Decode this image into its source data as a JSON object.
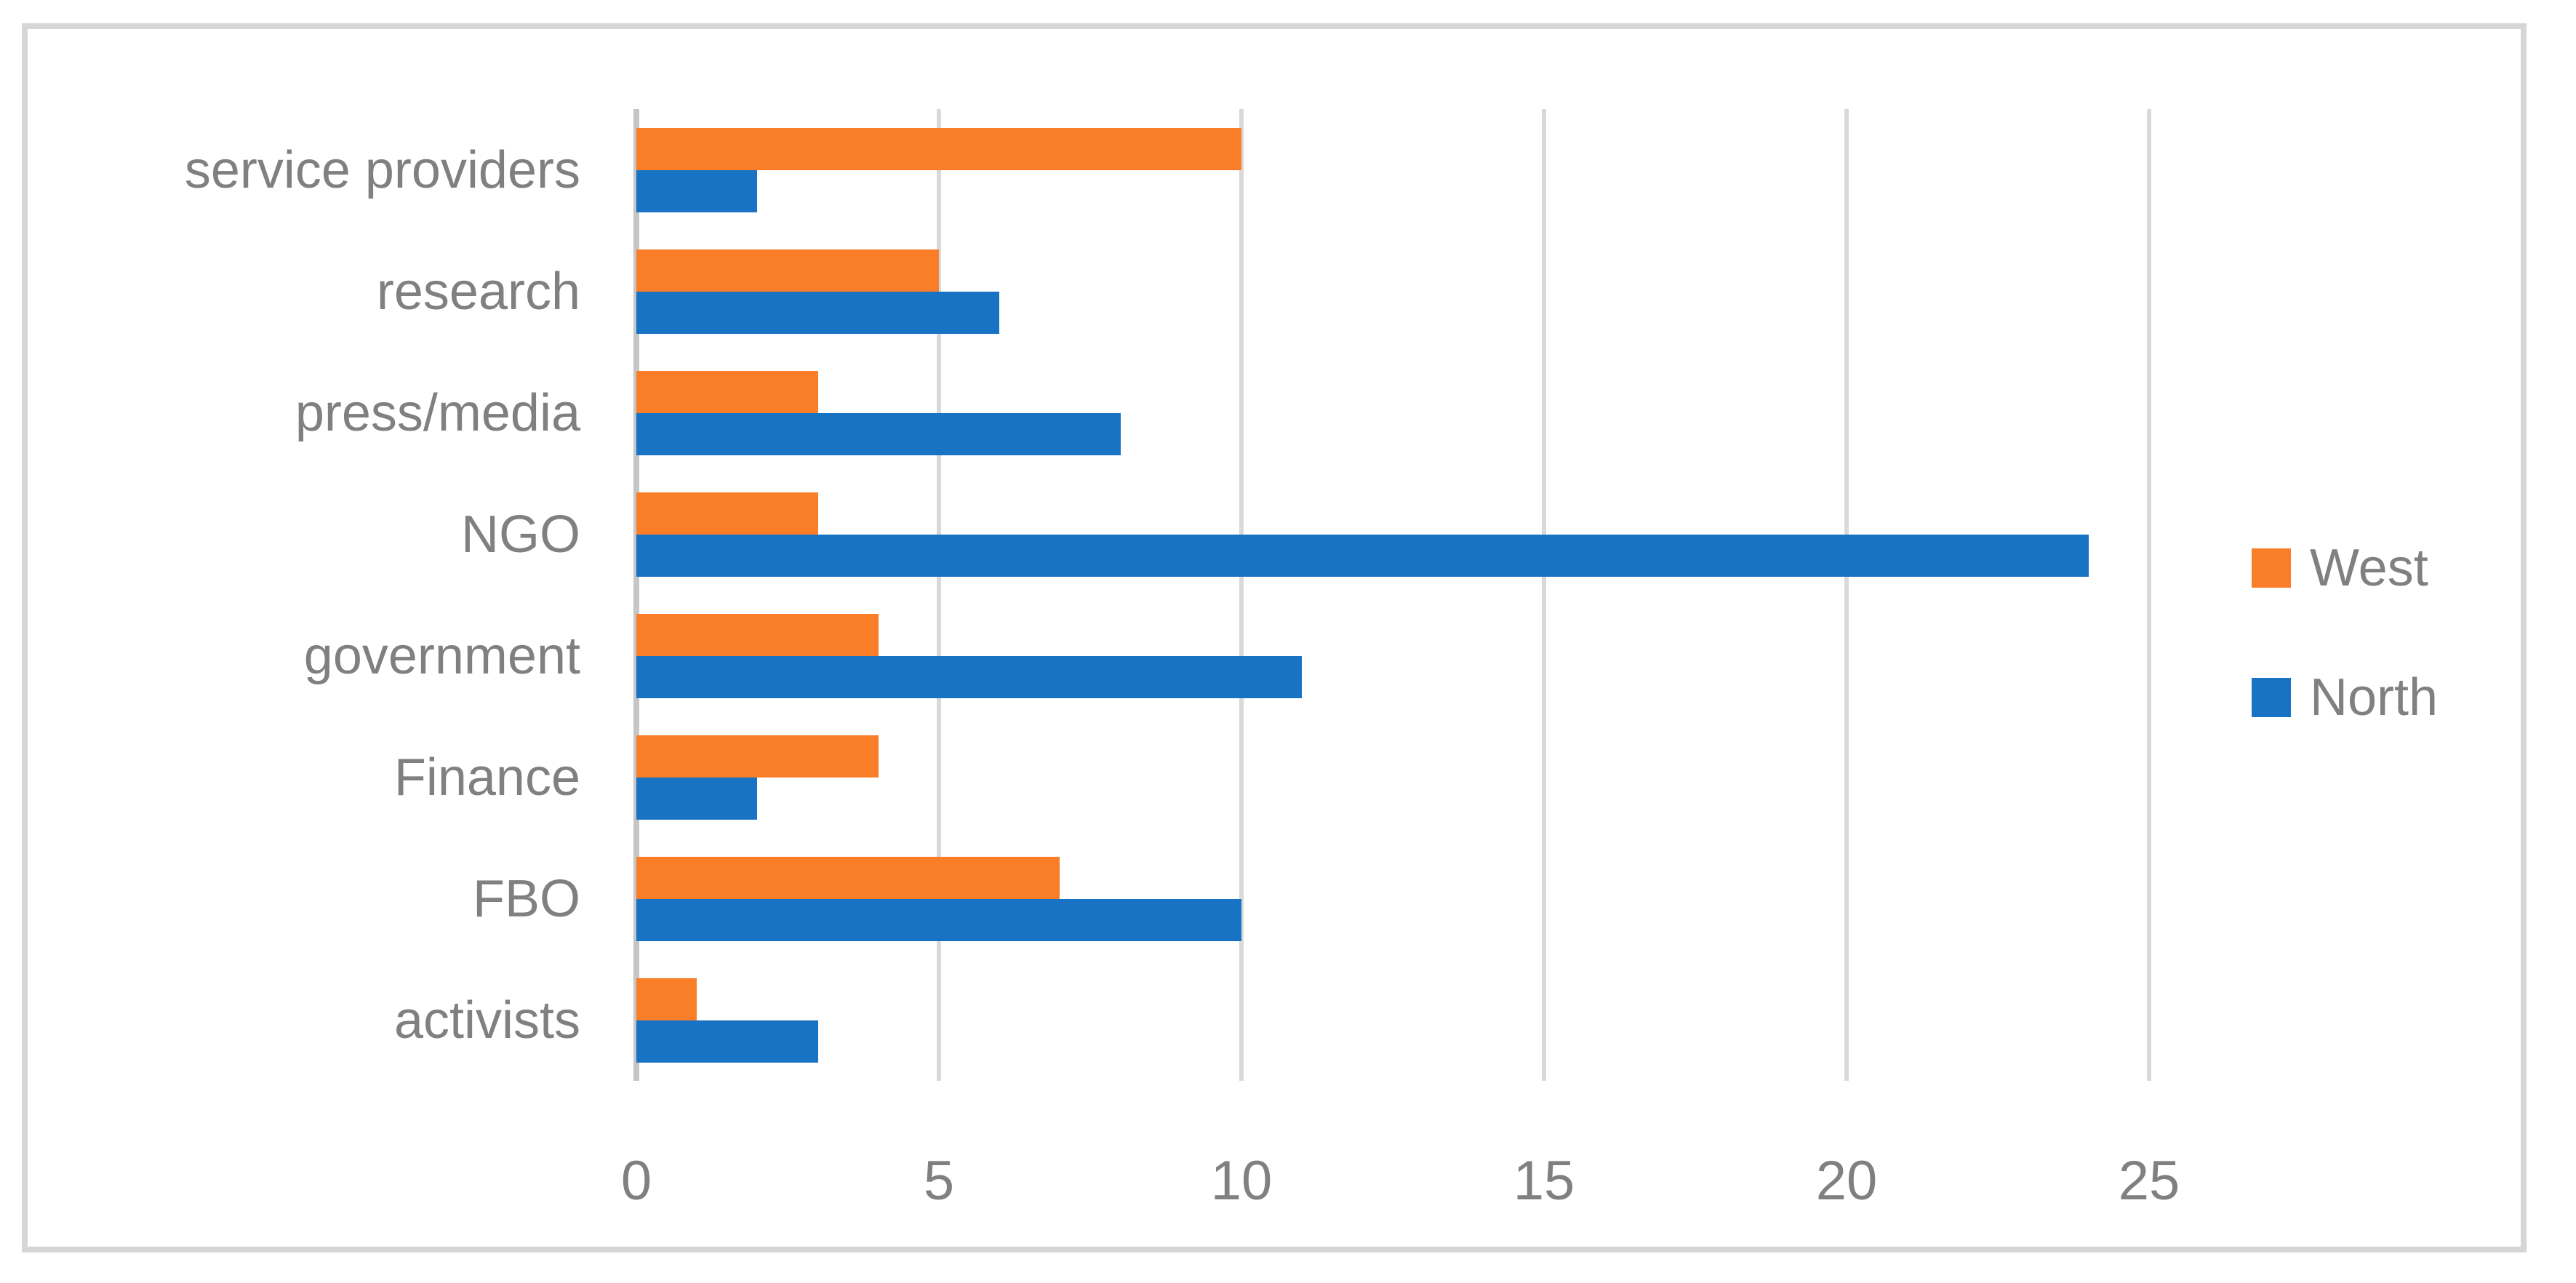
{
  "figure": {
    "background_color": "#FFFFFF",
    "frame_color": "#D6D6D6",
    "text_color": "#808080"
  },
  "chart_data": {
    "type": "bar",
    "orientation": "horizontal",
    "title": "",
    "xlabel": "",
    "ylabel": "",
    "categories": [
      "service providers",
      "research",
      "press/media",
      "NGO",
      "government",
      "Finance",
      "FBO",
      "activists"
    ],
    "series": [
      {
        "name": "West",
        "color": "#F97E27",
        "values": [
          10,
          5,
          3,
          3,
          4,
          4,
          7,
          1
        ]
      },
      {
        "name": "North",
        "color": "#1973C5",
        "values": [
          2,
          6,
          8,
          24,
          11,
          2,
          10,
          3
        ]
      }
    ],
    "xlim": [
      0,
      25
    ],
    "xticks": [
      "0",
      "5",
      "10",
      "15",
      "20",
      "25"
    ],
    "xtick_values": [
      0,
      5,
      10,
      15,
      20,
      25
    ],
    "grid": "vertical",
    "gridline_color": "#D9D9D9",
    "zero_line_color": "#C6C6C6",
    "legend_position": "right",
    "legend": [
      {
        "label": "West",
        "color": "#F97E27"
      },
      {
        "label": "North",
        "color": "#1973C5"
      }
    ]
  }
}
